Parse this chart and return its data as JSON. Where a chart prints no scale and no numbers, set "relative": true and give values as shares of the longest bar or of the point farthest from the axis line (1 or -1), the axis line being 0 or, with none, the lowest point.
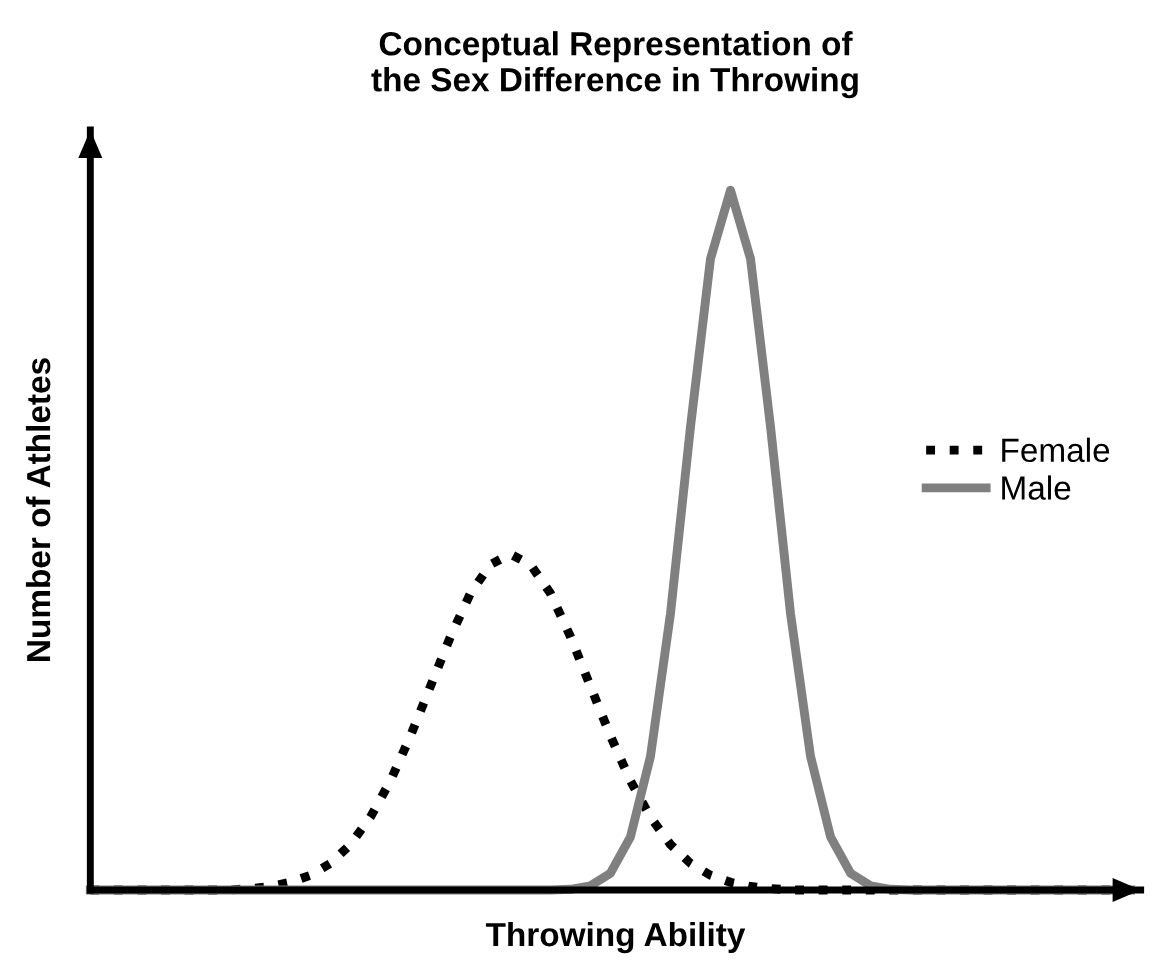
{
  "chart_data": {
    "type": "line",
    "title": "Conceptual Representation of\nthe Sex Difference in Throwing",
    "xlabel": "Throwing Ability",
    "ylabel": "Number of Athletes",
    "relative": true,
    "legend": "right",
    "grid": false,
    "categories": [
      null,
      null,
      null,
      null,
      null,
      null,
      null,
      null,
      null,
      null,
      null,
      null,
      null,
      null,
      null,
      null,
      null,
      null,
      null,
      null,
      null,
      null,
      null,
      null,
      null,
      null,
      null,
      null,
      null,
      null,
      null,
      null,
      null,
      null,
      null,
      null,
      null,
      null,
      null,
      null,
      null,
      null,
      null,
      null,
      null,
      null,
      null,
      null,
      null,
      null,
      null,
      null,
      null
    ],
    "series": [
      {
        "name": "Female",
        "color": "#000000",
        "line_style": "dotted",
        "values": [
          0,
          0,
          0,
          0,
          0,
          0,
          0,
          0,
          0.002,
          0.005,
          0.011,
          0.021,
          0.038,
          0.065,
          0.104,
          0.156,
          0.22,
          0.291,
          0.362,
          0.424,
          0.465,
          0.48,
          0.465,
          0.424,
          0.362,
          0.291,
          0.22,
          0.156,
          0.104,
          0.065,
          0.038,
          0.021,
          0.011,
          0.005,
          0.002,
          0,
          0,
          0,
          0,
          0,
          0,
          0,
          0,
          0,
          0,
          0,
          0,
          0,
          0,
          0,
          0,
          0,
          0
        ]
      },
      {
        "name": "Male",
        "color": "#808080",
        "line_style": "solid",
        "values": [
          0,
          0,
          0,
          0,
          0,
          0,
          0,
          0,
          0,
          0,
          0,
          0,
          0,
          0,
          0,
          0,
          0,
          0,
          0,
          0,
          0,
          0,
          0,
          0,
          0.001,
          0.006,
          0.024,
          0.076,
          0.191,
          0.395,
          0.662,
          0.902,
          1,
          0.902,
          0.662,
          0.395,
          0.191,
          0.076,
          0.024,
          0.006,
          0.001,
          0,
          0,
          0,
          0,
          0,
          0,
          0,
          0,
          0,
          0,
          0,
          0
        ]
      }
    ]
  }
}
